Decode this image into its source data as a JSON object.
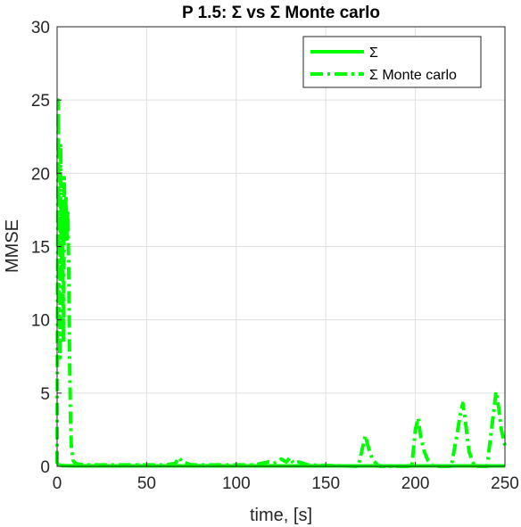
{
  "chart_data": {
    "type": "line",
    "title": "P 1.5: Σ vs Σ Monte carlo",
    "xlabel": "time, [s]",
    "ylabel": "MMSE",
    "xlim": [
      0,
      250
    ],
    "ylim": [
      0,
      30
    ],
    "xticks": [
      "0",
      "50",
      "100",
      "150",
      "200",
      "250"
    ],
    "yticks": [
      "0",
      "5",
      "10",
      "15",
      "20",
      "25",
      "30"
    ],
    "grid": true,
    "legend_position": "top-right",
    "series": [
      {
        "name": "Σ",
        "style": "solid",
        "color": "#00ff00",
        "x": [
          0,
          0.5,
          1,
          2,
          3,
          5,
          10,
          20,
          50,
          100,
          150,
          200,
          250
        ],
        "y": [
          0.1,
          0.15,
          0.1,
          0.08,
          0.05,
          0.04,
          0.03,
          0.03,
          0.03,
          0.03,
          0.03,
          0.03,
          0.03
        ]
      },
      {
        "name": "Σ Monte carlo",
        "style": "dashdot",
        "color": "#00ff00",
        "x": [
          0,
          0.6,
          1.0,
          1.5,
          2.0,
          2.5,
          3.0,
          3.5,
          4.0,
          4.5,
          5.0,
          5.5,
          6.0,
          6.5,
          7.0,
          7.5,
          8.0,
          9.0,
          10.0,
          12.0,
          15.0,
          20.0,
          30.0,
          45.0,
          60.0,
          66.0,
          68.0,
          70.0,
          75.0,
          90.0,
          110.0,
          118.0,
          121.0,
          125.0,
          128.0,
          130.0,
          132.0,
          135.0,
          140.0,
          155.0,
          168.0,
          170.0,
          172.0,
          174.0,
          176.0,
          178.0,
          180.0,
          190.0,
          198.0,
          200.0,
          201.5,
          203.0,
          205.0,
          207.0,
          210.0,
          220.0,
          223.0,
          225.0,
          226.5,
          228.0,
          230.0,
          233.0,
          240.0,
          243.0,
          245.0,
          246.5,
          248.0,
          250.0
        ],
        "y": [
          0.2,
          25,
          14,
          7.4,
          22,
          13,
          18,
          8.5,
          19.7,
          16,
          18.5,
          15.5,
          17.5,
          13,
          7,
          3,
          1.2,
          0.4,
          0.2,
          0.15,
          0.1,
          0.1,
          0.1,
          0.1,
          0.1,
          0.2,
          0.6,
          0.3,
          0.1,
          0.1,
          0.1,
          0.3,
          0.2,
          0.5,
          0.3,
          0.6,
          0.2,
          0.3,
          0.1,
          0.05,
          0.0,
          1.0,
          2.1,
          1.2,
          0.5,
          0.2,
          0.0,
          0.0,
          0.0,
          2.5,
          3.3,
          2.0,
          1.0,
          0.4,
          0.0,
          0.0,
          2.0,
          3.5,
          4.3,
          3.0,
          1.0,
          0.0,
          0.0,
          3.0,
          5.1,
          4.0,
          2.5,
          1.4
        ]
      }
    ]
  }
}
